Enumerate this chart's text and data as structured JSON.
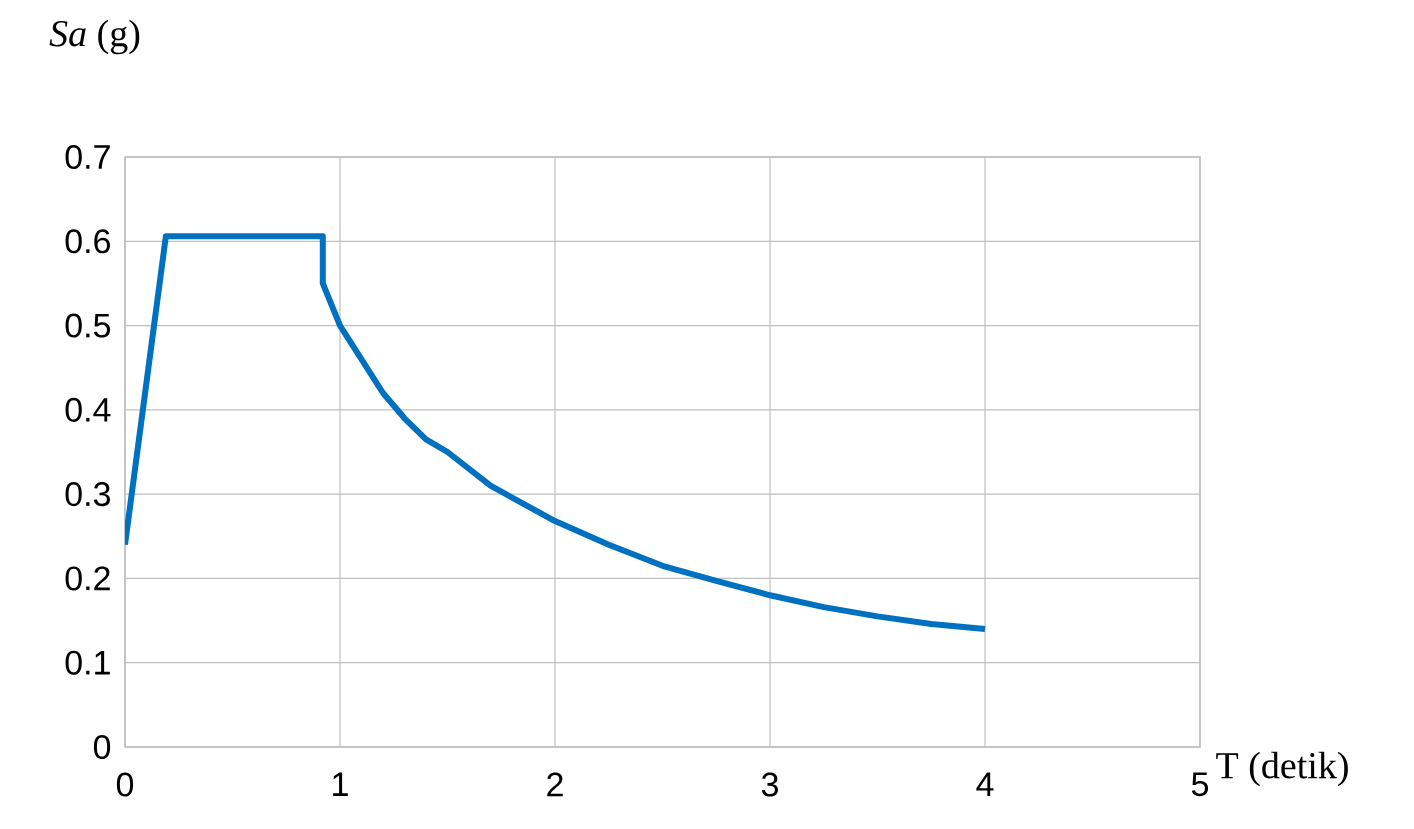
{
  "chart_data": {
    "type": "line",
    "xlabel": "T (detik)",
    "ylabel": "*Sa* (g)",
    "x": [
      0,
      0.19,
      0.92,
      0.92,
      1.0,
      1.1,
      1.2,
      1.3,
      1.4,
      1.5,
      1.7,
      2.0,
      2.25,
      2.5,
      2.75,
      3.0,
      3.25,
      3.5,
      3.75,
      4.0
    ],
    "series": [
      {
        "color": "#0070c0",
        "values": [
          0.24,
          0.606,
          0.606,
          0.55,
          0.5,
          0.46,
          0.42,
          0.39,
          0.365,
          0.35,
          0.31,
          0.268,
          0.24,
          0.215,
          0.197,
          0.18,
          0.166,
          0.155,
          0.146,
          0.14
        ]
      }
    ],
    "xlim": [
      0,
      5
    ],
    "ylim": [
      0,
      0.7
    ],
    "xticks": [
      0,
      1,
      2,
      3,
      4,
      5
    ],
    "yticks": [
      0,
      0.1,
      0.2,
      0.3,
      0.4,
      0.5,
      0.6,
      0.7
    ],
    "grid": true,
    "marker": "none",
    "line_style": "solid"
  }
}
